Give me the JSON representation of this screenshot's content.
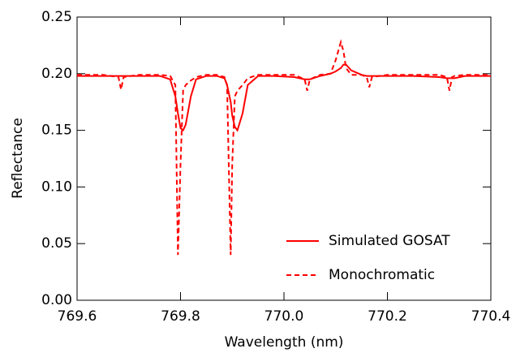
{
  "chart_data": {
    "type": "line",
    "x_label": "Wavelength (nm)",
    "y_label": "Reflectance",
    "x": [
      769.6,
      769.65,
      769.68,
      769.685,
      769.69,
      769.72,
      769.76,
      769.78,
      769.79,
      769.795,
      769.8,
      769.805,
      769.81,
      769.82,
      769.83,
      769.85,
      769.87,
      769.885,
      769.89,
      769.897,
      769.9,
      769.905,
      769.91,
      769.92,
      769.93,
      769.95,
      769.98,
      770.02,
      770.04,
      770.045,
      770.05,
      770.07,
      770.09,
      770.1,
      770.11,
      770.115,
      770.12,
      770.13,
      770.15,
      770.16,
      770.165,
      770.17,
      770.2,
      770.25,
      770.3,
      770.315,
      770.32,
      770.325,
      770.33,
      770.35,
      770.4
    ],
    "series": [
      {
        "name": "Simulated GOSAT",
        "color": "#ff0000",
        "dash": false,
        "values": [
          0.198,
          0.198,
          0.198,
          0.198,
          0.198,
          0.198,
          0.198,
          0.195,
          0.18,
          0.165,
          0.152,
          0.15,
          0.155,
          0.18,
          0.195,
          0.198,
          0.198,
          0.196,
          0.19,
          0.175,
          0.163,
          0.153,
          0.15,
          0.165,
          0.19,
          0.198,
          0.198,
          0.197,
          0.195,
          0.195,
          0.195,
          0.198,
          0.2,
          0.202,
          0.205,
          0.208,
          0.208,
          0.203,
          0.199,
          0.198,
          0.198,
          0.198,
          0.198,
          0.198,
          0.197,
          0.196,
          0.196,
          0.196,
          0.196,
          0.198,
          0.198
        ]
      },
      {
        "name": "Monochromatic",
        "color": "#ff0000",
        "dash": true,
        "values": [
          0.199,
          0.199,
          0.197,
          0.186,
          0.197,
          0.199,
          0.199,
          0.198,
          0.19,
          0.04,
          0.12,
          0.185,
          0.19,
          0.194,
          0.197,
          0.199,
          0.199,
          0.197,
          0.19,
          0.04,
          0.12,
          0.18,
          0.185,
          0.19,
          0.196,
          0.199,
          0.199,
          0.199,
          0.195,
          0.185,
          0.195,
          0.199,
          0.2,
          0.212,
          0.228,
          0.22,
          0.205,
          0.199,
          0.199,
          0.197,
          0.188,
          0.197,
          0.199,
          0.199,
          0.199,
          0.197,
          0.185,
          0.197,
          0.198,
          0.199,
          0.199
        ]
      }
    ],
    "xlim": [
      769.6,
      770.4
    ],
    "ylim": [
      0,
      0.25
    ],
    "xticks": [
      769.6,
      769.8,
      {
        "value": 770,
        "label": "770.0"
      },
      770.2,
      770.4
    ],
    "yticks": [
      {
        "value": 0,
        "label": "0.00"
      },
      0.05,
      {
        "value": 0.1,
        "label": "0.10"
      },
      0.15,
      {
        "value": 0.2,
        "label": "0.20"
      },
      0.25
    ],
    "grid": false,
    "legend_position": "lower right"
  }
}
